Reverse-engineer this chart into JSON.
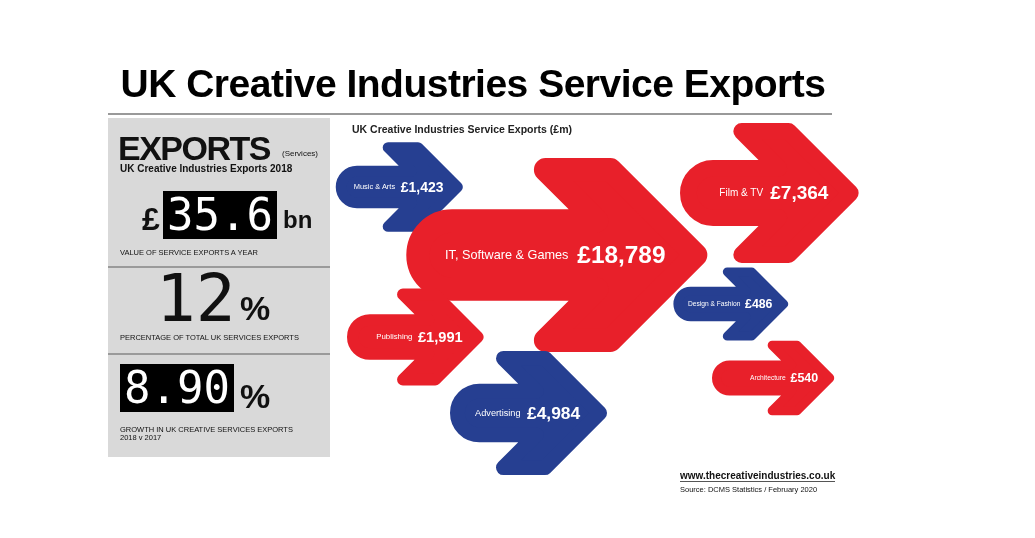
{
  "chart_data": {
    "type": "other",
    "title": "UK Creative Industries Service Exports",
    "subtitle": "UK Creative Industries Service Exports (£m)",
    "categories": [
      "Music & Arts",
      "IT, Software & Games",
      "Film & TV",
      "Publishing",
      "Advertising",
      "Design & Fashion",
      "Architecture"
    ],
    "values": [
      1423,
      18789,
      7364,
      1991,
      4984,
      486,
      540
    ],
    "value_labels": [
      "£1,423",
      "£18,789",
      "£7,364",
      "£1,991",
      "£4,984",
      "£486",
      "£540"
    ],
    "colors": [
      "#263f91",
      "#e8202a",
      "#e8202a",
      "#e8202a",
      "#263f91",
      "#263f91",
      "#e8202a"
    ],
    "annotations": [
      "EXPORTS",
      "(Services)",
      "UK Creative Industries Exports 2018",
      "£",
      "35.6",
      "bn",
      "VALUE OF SERVICE EXPORTS A YEAR",
      "12",
      "%",
      "PERCENTAGE OF TOTAL UK SERVICES EXPORTS",
      "8.90",
      "%",
      "GROWTH IN UK CREATIVE SERVICES EXPORTS 2018 v 2017",
      "www.thecreativeindustries.co.uk",
      "Source: DCMS Statistics / February 2020"
    ]
  }
}
